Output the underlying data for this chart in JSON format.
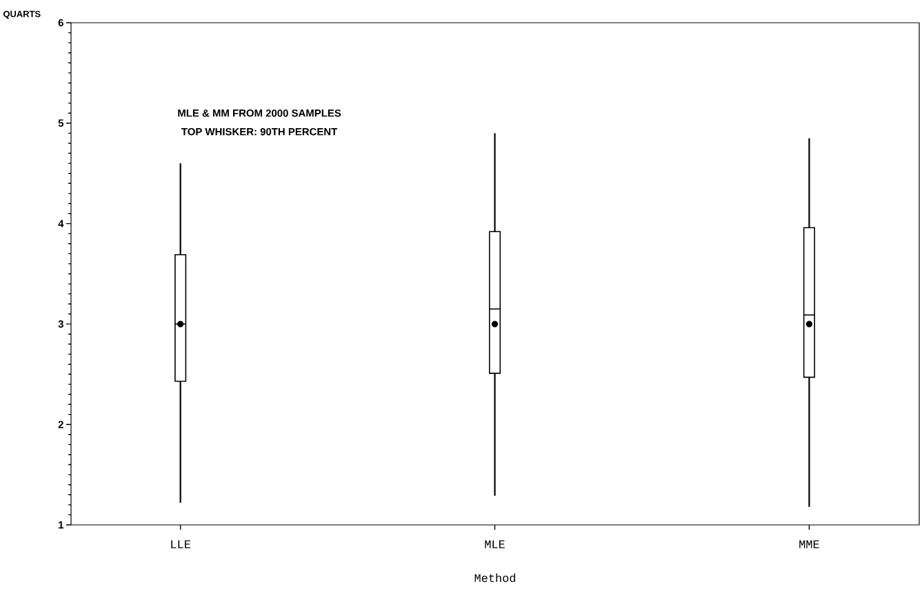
{
  "chart_data": {
    "type": "box",
    "categories": [
      "LLE",
      "MLE",
      "MME"
    ],
    "boxes": [
      {
        "low": 1.22,
        "q1": 2.43,
        "median": 3.0,
        "q3": 3.69,
        "high": 4.6,
        "mean": 3.0
      },
      {
        "low": 1.29,
        "q1": 2.51,
        "median": 3.15,
        "q3": 3.92,
        "high": 4.9,
        "mean": 3.0
      },
      {
        "low": 1.18,
        "q1": 2.47,
        "median": 3.09,
        "q3": 3.96,
        "high": 4.85,
        "mean": 3.0
      }
    ],
    "ylim": [
      1,
      6
    ],
    "yticks": [
      1,
      2,
      3,
      4,
      5,
      6
    ],
    "xlabel": "Method",
    "ylabel": "QUARTS",
    "annotations": [
      "MLE & MM FROM 2000 SAMPLES",
      "TOP WHISKER: 90TH PERCENT"
    ],
    "marker": "circle"
  }
}
